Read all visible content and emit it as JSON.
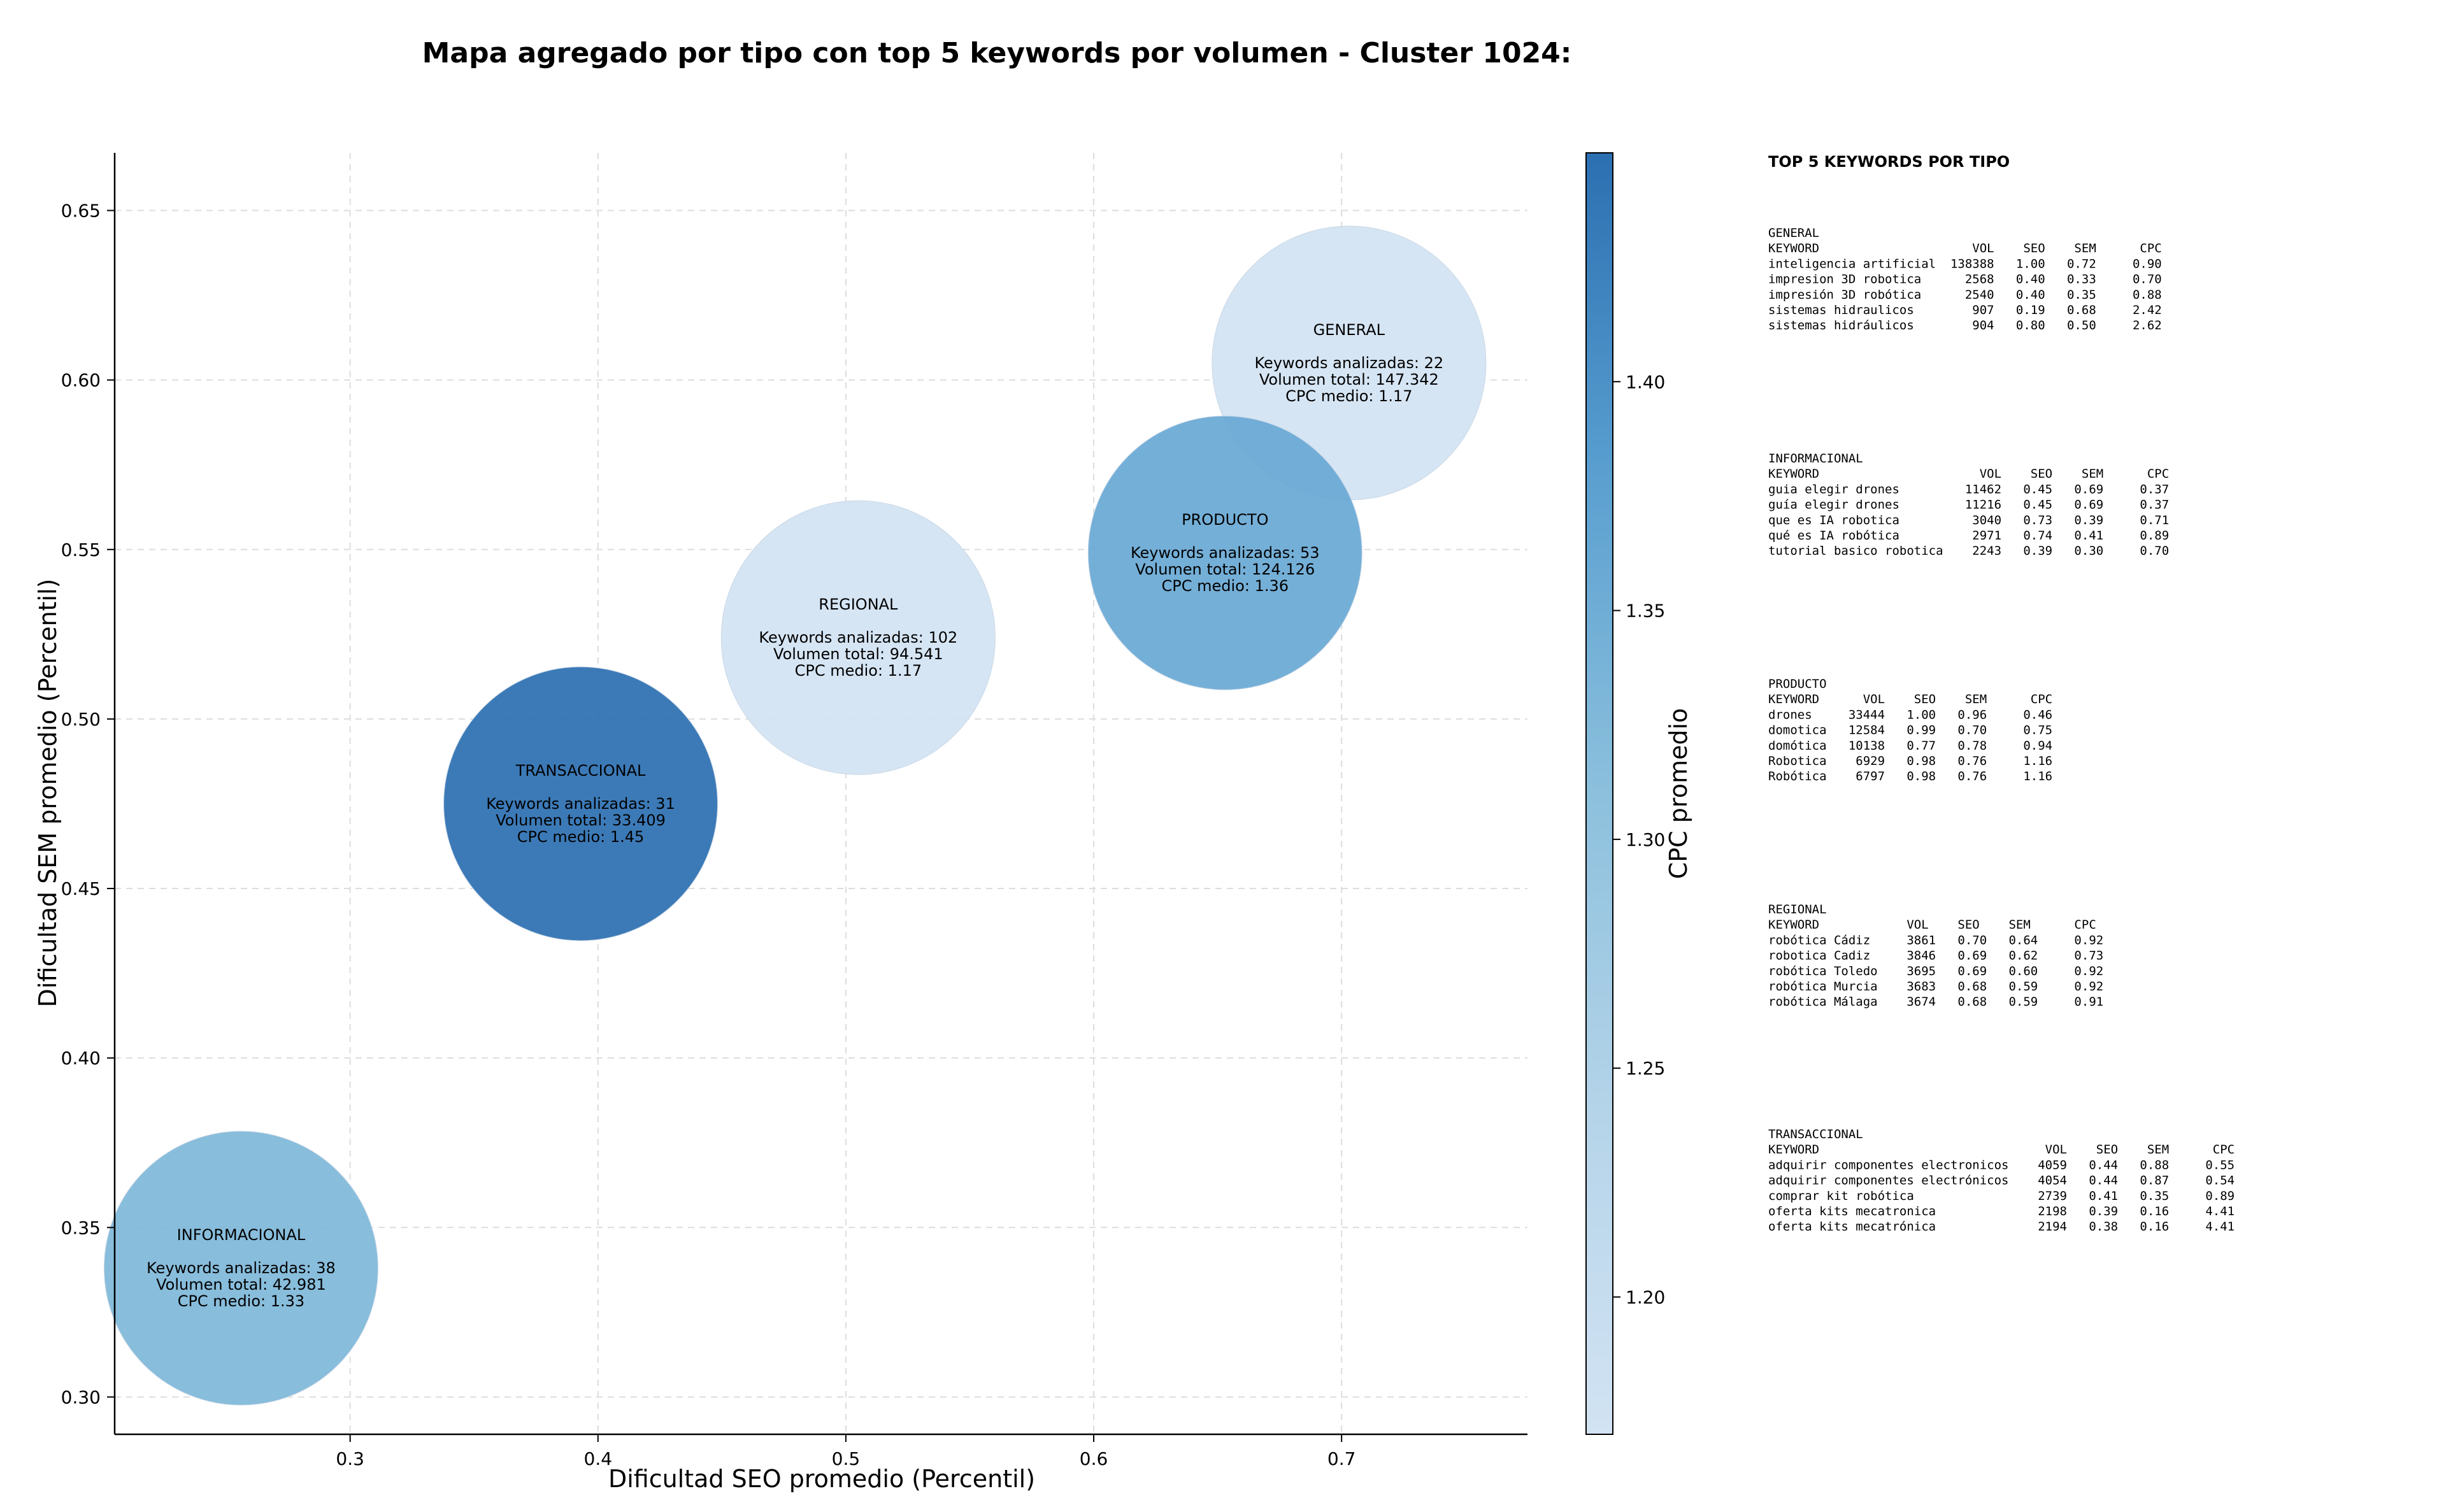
{
  "chart_data": {
    "type": "scatter",
    "title": "Mapa agregado por tipo con top 5 keywords por volumen - Cluster 1024:",
    "xlabel": "Dificultad SEO promedio (Percentil)",
    "ylabel": "Dificultad SEM promedio (Percentil)",
    "colorbar_label": "CPC promedio",
    "xlim": [
      0.205,
      0.775
    ],
    "ylim": [
      0.289,
      0.667
    ],
    "x_ticks": [
      0.3,
      0.4,
      0.5,
      0.6,
      0.7
    ],
    "x_tick_labels": [
      "0.3",
      "0.4",
      "0.5",
      "0.6",
      "0.7"
    ],
    "y_ticks": [
      0.3,
      0.35,
      0.4,
      0.45,
      0.5,
      0.55,
      0.6,
      0.65
    ],
    "y_tick_labels": [
      "0.30",
      "0.35",
      "0.40",
      "0.45",
      "0.50",
      "0.55",
      "0.60",
      "0.65"
    ],
    "colorbar_range": [
      1.17,
      1.45
    ],
    "colorbar_ticks": [
      1.2,
      1.25,
      1.3,
      1.35,
      1.4
    ],
    "colorbar_tick_labels": [
      "1.20",
      "1.25",
      "1.30",
      "1.35",
      "1.40"
    ],
    "grid": true,
    "colormap": [
      "#d2e3f3",
      "#2b6fb1"
    ],
    "points": [
      {
        "name": "GENERAL",
        "x": 0.703,
        "y": 0.605,
        "keywords": 22,
        "volume": 147342,
        "cpc": 1.17,
        "label_lines": [
          "GENERAL",
          "",
          "Keywords analizadas: 22",
          "Volumen total: 147.342",
          "CPC medio: 1.17"
        ]
      },
      {
        "name": "PRODUCTO",
        "x": 0.653,
        "y": 0.549,
        "keywords": 53,
        "volume": 124126,
        "cpc": 1.36,
        "label_lines": [
          "PRODUCTO",
          "",
          "Keywords analizadas: 53",
          "Volumen total: 124.126",
          "CPC medio: 1.36"
        ]
      },
      {
        "name": "REGIONAL",
        "x": 0.505,
        "y": 0.524,
        "keywords": 102,
        "volume": 94541,
        "cpc": 1.17,
        "label_lines": [
          "REGIONAL",
          "",
          "Keywords analizadas: 102",
          "Volumen total: 94.541",
          "CPC medio: 1.17"
        ]
      },
      {
        "name": "TRANSACCIONAL",
        "x": 0.393,
        "y": 0.475,
        "keywords": 31,
        "volume": 33409,
        "cpc": 1.45,
        "label_lines": [
          "TRANSACCIONAL",
          "",
          "Keywords analizadas: 31",
          "Volumen total: 33.409",
          "CPC medio: 1.45"
        ]
      },
      {
        "name": "INFORMACIONAL",
        "x": 0.256,
        "y": 0.338,
        "keywords": 38,
        "volume": 42981,
        "cpc": 1.33,
        "label_lines": [
          "INFORMACIONAL",
          "",
          "Keywords analizadas: 38",
          "Volumen total: 42.981",
          "CPC medio: 1.33"
        ]
      }
    ],
    "side_panel": {
      "heading": "TOP 5 KEYWORDS POR TIPO",
      "blocks": [
        {
          "lines": [
            "GENERAL",
            "KEYWORD                     VOL    SEO    SEM      CPC",
            "inteligencia artificial  138388   1.00   0.72     0.90",
            "impresion 3D robotica      2568   0.40   0.33     0.70",
            "impresión 3D robótica      2540   0.40   0.35     0.88",
            "sistemas hidraulicos        907   0.19   0.68     2.42",
            "sistemas hidráulicos        904   0.80   0.50     2.62"
          ]
        },
        {
          "lines": [
            "INFORMACIONAL",
            "KEYWORD                      VOL    SEO    SEM      CPC",
            "guia elegir drones         11462   0.45   0.69     0.37",
            "guía elegir drones         11216   0.45   0.69     0.37",
            "que es IA robotica          3040   0.73   0.39     0.71",
            "qué es IA robótica          2971   0.74   0.41     0.89",
            "tutorial basico robotica    2243   0.39   0.30     0.70"
          ]
        },
        {
          "lines": [
            "PRODUCTO",
            "KEYWORD      VOL    SEO    SEM      CPC",
            "drones     33444   1.00   0.96     0.46",
            "domotica   12584   0.99   0.70     0.75",
            "domótica   10138   0.77   0.78     0.94",
            "Robotica    6929   0.98   0.76     1.16",
            "Robótica    6797   0.98   0.76     1.16"
          ]
        },
        {
          "lines": [
            "REGIONAL",
            "KEYWORD            VOL    SEO    SEM      CPC",
            "robótica Cádiz     3861   0.70   0.64     0.92",
            "robotica Cadiz     3846   0.69   0.62     0.73",
            "robótica Toledo    3695   0.69   0.60     0.92",
            "robótica Murcia    3683   0.68   0.59     0.92",
            "robótica Málaga    3674   0.68   0.59     0.91"
          ]
        },
        {
          "lines": [
            "TRANSACCIONAL",
            "KEYWORD                               VOL    SEO    SEM      CPC",
            "adquirir componentes electronicos    4059   0.44   0.88     0.55",
            "adquirir componentes electrónicos    4054   0.44   0.87     0.54",
            "comprar kit robótica                 2739   0.41   0.35     0.89",
            "oferta kits mecatronica              2198   0.39   0.16     4.41",
            "oferta kits mecatrónica              2194   0.38   0.16     4.41"
          ]
        }
      ]
    }
  }
}
